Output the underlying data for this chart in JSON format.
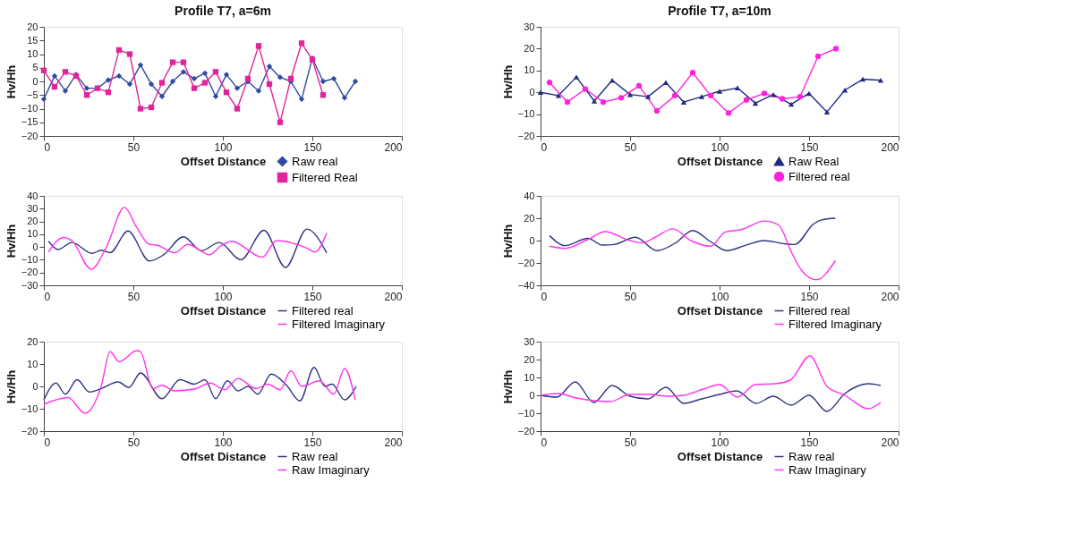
{
  "chart_data": [
    {
      "type": "line",
      "title": "Profile T7, a=6m",
      "xlabel": "Offset Distance",
      "ylabel": "Hv/Hh",
      "xlim": [
        0,
        200
      ],
      "xticks": [
        0,
        50,
        100,
        150,
        200
      ],
      "ylim": [
        -20,
        20
      ],
      "yticks": [
        -20,
        -15,
        -10,
        -5,
        0,
        5,
        10,
        15,
        20
      ],
      "grid": false,
      "legend": "bottom right",
      "line_style": "solid",
      "series": [
        {
          "name": "Raw real",
          "color": "#2f4a9e",
          "marker": "diamond",
          "x": [
            0,
            6,
            12,
            18,
            24,
            30,
            36,
            42,
            48,
            54,
            60,
            66,
            72,
            78,
            84,
            90,
            96,
            102,
            108,
            114,
            120,
            126,
            132,
            138,
            144,
            150,
            156,
            162,
            168,
            174
          ],
          "values": [
            -6.5,
            2,
            -3.5,
            2.5,
            -2.5,
            -2.5,
            0.5,
            2,
            -1,
            6,
            -1,
            -5.5,
            0,
            3.5,
            1,
            3,
            -5.5,
            2.5,
            -2.5,
            0,
            -3.5,
            5.5,
            1.5,
            0,
            -6.5,
            8.5,
            0,
            1,
            -6,
            0
          ]
        },
        {
          "name": "Filtered Real",
          "color": "#e0259b",
          "marker": "square",
          "x": [
            0,
            6,
            12,
            18,
            24,
            30,
            36,
            42,
            48,
            54,
            60,
            66,
            72,
            78,
            84,
            90,
            96,
            102,
            108,
            114,
            120,
            126,
            132,
            138,
            144,
            150,
            156
          ],
          "values": [
            4,
            -2,
            3.5,
            2,
            -5,
            -2.5,
            -4,
            11.5,
            10,
            -10,
            -9.5,
            -0.5,
            7,
            7,
            -2.5,
            -0.5,
            3.5,
            -4,
            -10,
            1,
            13,
            -1,
            -15,
            1,
            14,
            8,
            -5
          ]
        }
      ]
    },
    {
      "type": "line",
      "title": "Profile T7, a=10m",
      "xlabel": "Offset Distance",
      "ylabel": "Hv/Hh",
      "xlim": [
        0,
        200
      ],
      "xticks": [
        0,
        50,
        100,
        150,
        200
      ],
      "ylim": [
        -20,
        30
      ],
      "yticks": [
        -20,
        -10,
        0,
        10,
        20,
        30
      ],
      "grid": false,
      "legend": "bottom right",
      "line_style": "solid",
      "series": [
        {
          "name": "Raw Real",
          "color": "#1f2a80",
          "marker": "triangle",
          "x": [
            0,
            10,
            20,
            30,
            40,
            50,
            60,
            70,
            80,
            90,
            100,
            110,
            120,
            130,
            140,
            150,
            160,
            170,
            180,
            190
          ],
          "values": [
            0,
            -1.5,
            7,
            -4,
            5.5,
            -1,
            -2,
            4.5,
            -4.5,
            -2,
            0.5,
            2,
            -5,
            -1,
            -5.5,
            -0.5,
            -9,
            1,
            6,
            5.5
          ]
        },
        {
          "name": "Filtered real",
          "color": "#ff22dd",
          "marker": "circle",
          "x": [
            5,
            15,
            25,
            35,
            45,
            55,
            65,
            75,
            85,
            95,
            105,
            115,
            125,
            135,
            145,
            155,
            165
          ],
          "values": [
            4.5,
            -4.5,
            1.5,
            -4.5,
            -2.5,
            3,
            -8.5,
            -1.5,
            9,
            -1.5,
            -9.5,
            -3.5,
            -0.5,
            -3,
            -2,
            16.5,
            20
          ]
        }
      ]
    },
    {
      "type": "line",
      "xlabel": "Offset Distance",
      "ylabel": "Hv/Hh",
      "xlim": [
        0,
        200
      ],
      "xticks": [
        0,
        50,
        100,
        150,
        200
      ],
      "ylim": [
        -30,
        40
      ],
      "yticks": [
        -30,
        -20,
        -10,
        0,
        10,
        20,
        30,
        40
      ],
      "grid": false,
      "legend": "bottom right",
      "line_style": "solid",
      "marker": "none",
      "series": [
        {
          "name": "Filtered real",
          "color": "#2f3580",
          "x": [
            2.6,
            8,
            15.6,
            27,
            32,
            37,
            47,
            59,
            67,
            78,
            88,
            98,
            110,
            123,
            135,
            147,
            158
          ],
          "values": [
            4.5,
            -2,
            3.5,
            -5,
            -2.5,
            -4.5,
            12.5,
            -11,
            -6,
            8,
            -3,
            3.5,
            -10,
            13,
            -16,
            14,
            -4.5
          ]
        },
        {
          "name": "Filtered Imaginary",
          "color": "#ff33ee",
          "x": [
            2.6,
            11,
            15.6,
            26.5,
            35,
            45,
            52,
            59,
            63,
            73,
            80.5,
            92.6,
            99,
            105,
            122,
            130,
            139,
            147,
            151.5,
            158
          ],
          "values": [
            -4,
            7.5,
            5,
            -17.5,
            0,
            31,
            15,
            2,
            1.5,
            -4.5,
            2,
            -6,
            1,
            4.5,
            -8,
            5,
            3,
            -1,
            -4,
            11
          ]
        }
      ]
    },
    {
      "type": "line",
      "xlabel": "Offset Distance",
      "ylabel": "Hv/Hh",
      "xlim": [
        0,
        200
      ],
      "xticks": [
        0,
        50,
        100,
        150,
        200
      ],
      "ylim": [
        -40,
        40
      ],
      "yticks": [
        -40,
        -20,
        0,
        20,
        40
      ],
      "grid": false,
      "legend": "bottom right",
      "line_style": "solid",
      "marker": "none",
      "series": [
        {
          "name": "Filtered real",
          "color": "#2f3580",
          "x": [
            5,
            13.7,
            26.5,
            34.5,
            41,
            53,
            65,
            75.5,
            85,
            95,
            104,
            114,
            125,
            135,
            142,
            152.6,
            157,
            164.7
          ],
          "values": [
            4.5,
            -4.5,
            2,
            -4,
            -3.5,
            3,
            -9,
            -2,
            9,
            -1,
            -9,
            -4.5,
            0,
            -2.5,
            -3.5,
            15,
            18.5,
            20
          ]
        },
        {
          "name": "Filtered Imaginary",
          "color": "#ff33ee",
          "x": [
            5,
            13.7,
            26.5,
            36,
            50,
            57,
            64,
            74,
            84,
            95,
            103,
            112.5,
            125,
            133,
            140,
            146,
            154,
            164.7
          ],
          "values": [
            -5,
            -7,
            1,
            8,
            0,
            -2,
            3,
            10.5,
            0,
            -5,
            7.5,
            10,
            17.5,
            14,
            -10,
            -27,
            -35,
            -18
          ]
        }
      ]
    },
    {
      "type": "line",
      "xlabel": "Offset Distance",
      "ylabel": "Hv/Hh",
      "xlim": [
        0,
        200
      ],
      "xticks": [
        0,
        50,
        100,
        150,
        200
      ],
      "ylim": [
        -20,
        20
      ],
      "yticks": [
        -20,
        -10,
        0,
        10,
        20
      ],
      "grid": false,
      "legend": "bottom right",
      "line_style": "solid",
      "marker": "none",
      "series": [
        {
          "name": "Raw real",
          "color": "#2f3580",
          "x": [
            0,
            6.8,
            12,
            18.6,
            25.4,
            32,
            41.5,
            47.5,
            54,
            66,
            76,
            84,
            90,
            96,
            102.5,
            108.5,
            114,
            119.5,
            127,
            135.6,
            143,
            151,
            157,
            161,
            168,
            174.5
          ],
          "values": [
            -6,
            1.5,
            -3.5,
            3,
            -2.5,
            -1,
            2,
            -0.5,
            6,
            -5.5,
            3,
            1,
            3,
            -5.5,
            2.5,
            -2,
            0,
            -3.5,
            5.5,
            0.5,
            -6.5,
            8.5,
            0,
            1,
            -6,
            0
          ]
        },
        {
          "name": "Raw Imaginary",
          "color": "#ff33ee",
          "x": [
            0,
            13.5,
            23,
            32,
            37,
            42,
            52,
            54,
            61,
            66,
            73,
            85,
            93,
            101,
            108.5,
            118.6,
            125,
            132,
            138,
            144,
            154,
            162,
            168,
            174
          ],
          "values": [
            -8,
            -5,
            -12,
            0,
            15.5,
            11,
            16,
            15.5,
            -1,
            0.5,
            -2,
            -1,
            1.5,
            -1.5,
            3.5,
            -1,
            1,
            -1.5,
            7,
            0,
            2.5,
            -3.5,
            8,
            -6
          ]
        }
      ]
    },
    {
      "type": "line",
      "xlabel": "Offset Distance",
      "ylabel": "Hv/Hh",
      "xlim": [
        0,
        200
      ],
      "xticks": [
        0,
        50,
        100,
        150,
        200
      ],
      "ylim": [
        -20,
        30
      ],
      "yticks": [
        -20,
        -10,
        0,
        10,
        20,
        30
      ],
      "grid": false,
      "legend": "bottom right",
      "line_style": "solid",
      "marker": "none",
      "series": [
        {
          "name": "Raw real",
          "color": "#2f3580",
          "x": [
            0,
            9,
            19.4,
            29.7,
            40,
            50,
            60,
            70,
            80,
            90,
            100,
            109.5,
            120.5,
            130,
            140,
            150,
            160,
            170,
            183,
            190
          ],
          "values": [
            0,
            -1,
            7.5,
            -4,
            5.5,
            -0.5,
            -2,
            4.5,
            -4.5,
            -2,
            0.5,
            2.5,
            -4.5,
            -0.5,
            -5.5,
            0,
            -9,
            1,
            6.5,
            5.5
          ]
        },
        {
          "name": "Raw Imaginary",
          "color": "#ff33ee",
          "x": [
            0,
            10,
            20,
            30,
            39,
            50,
            61,
            71,
            80,
            91,
            100,
            110,
            120,
            131,
            139.5,
            150.5,
            160,
            170,
            183,
            190
          ],
          "values": [
            0,
            1,
            -1.5,
            -3,
            -3.5,
            0.5,
            0.5,
            -0.5,
            0,
            3.5,
            6,
            -1,
            6,
            6.5,
            8.5,
            22,
            5,
            0,
            -7.5,
            -4
          ]
        }
      ]
    }
  ]
}
